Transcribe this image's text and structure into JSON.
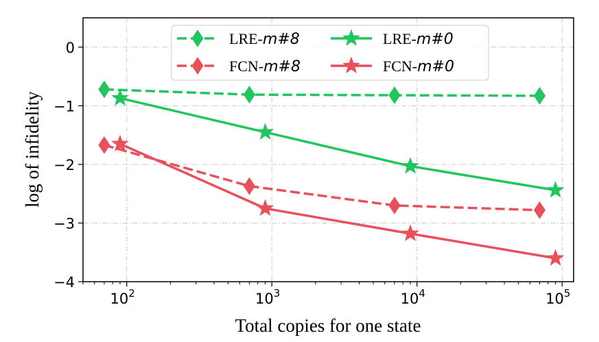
{
  "chart_data": {
    "type": "line",
    "title": "",
    "xlabel": "Total copies for one state",
    "ylabel": "log of infidelity",
    "xscale": "log",
    "xlim": [
      50,
      120000
    ],
    "ylim": [
      -4,
      0.5
    ],
    "x_ticks": [
      {
        "base": "10",
        "exp": "2"
      },
      {
        "base": "10",
        "exp": "3"
      },
      {
        "base": "10",
        "exp": "4"
      },
      {
        "base": "10",
        "exp": "5"
      }
    ],
    "y_ticks": [
      "0",
      "−1",
      "−2",
      "−3",
      "−4"
    ],
    "y_tick_values": [
      0,
      -1,
      -2,
      -3,
      -4
    ],
    "grid": true,
    "legend_placement": "top-center",
    "series": [
      {
        "name": "LRE-m#8",
        "prefix": "LRE-",
        "suffix": "m#8",
        "color": "#22c55e",
        "linestyle": "dashed",
        "marker": "diamond",
        "x": [
          70,
          700,
          7000,
          70000
        ],
        "values": [
          -0.72,
          -0.81,
          -0.82,
          -0.83
        ]
      },
      {
        "name": "FCN-m#8",
        "prefix": "FCN-",
        "suffix": "m#8",
        "color": "#e8505b",
        "linestyle": "dashed",
        "marker": "diamond",
        "x": [
          70,
          700,
          7000,
          70000
        ],
        "values": [
          -1.67,
          -2.37,
          -2.7,
          -2.78
        ]
      },
      {
        "name": "LRE-m#0",
        "prefix": "LRE-",
        "suffix": "m#0",
        "color": "#22c55e",
        "linestyle": "solid",
        "marker": "star",
        "x": [
          90,
          900,
          9000,
          90000
        ],
        "values": [
          -0.87,
          -1.45,
          -2.03,
          -2.44
        ]
      },
      {
        "name": "FCN-m#0",
        "prefix": "FCN-",
        "suffix": "m#0",
        "color": "#e8505b",
        "linestyle": "solid",
        "marker": "star",
        "x": [
          90,
          900,
          9000,
          90000
        ],
        "values": [
          -1.65,
          -2.75,
          -3.18,
          -3.6
        ]
      }
    ]
  }
}
